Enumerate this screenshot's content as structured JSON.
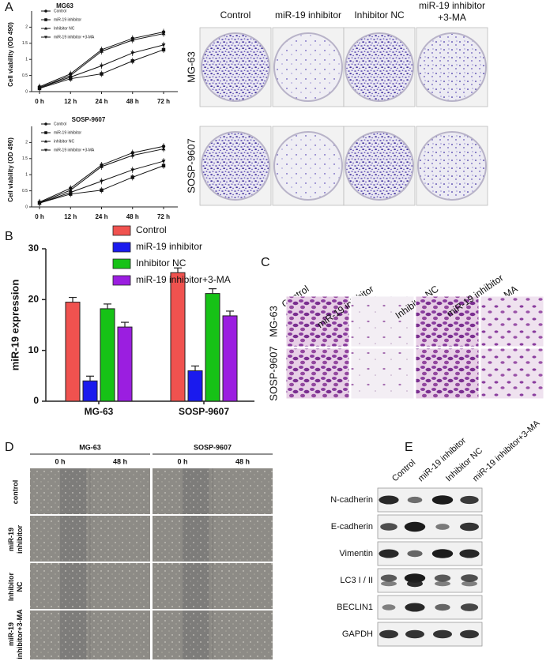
{
  "chart_data": [
    {
      "type": "line",
      "title": "MG63",
      "y_label": "Cell viability (OD 490)",
      "categories": [
        "0 h",
        "12 h",
        "24 h",
        "48 h",
        "72 h"
      ],
      "ylim": [
        0,
        2.5
      ],
      "yticks": [
        0,
        0.5,
        1,
        1.5,
        2
      ],
      "series": [
        {
          "name": "Control",
          "color": "#111111",
          "marker": "circle",
          "values": [
            0.15,
            0.55,
            1.3,
            1.65,
            1.85
          ]
        },
        {
          "name": "miR-19 inhibitor",
          "color": "#111111",
          "marker": "square",
          "values": [
            0.1,
            0.4,
            0.55,
            0.95,
            1.3
          ]
        },
        {
          "name": "Inhibitor NC",
          "color": "#111111",
          "marker": "triangle",
          "values": [
            0.12,
            0.5,
            1.25,
            1.6,
            1.8
          ]
        },
        {
          "name": "miR-19 inhibitor +3-MA",
          "color": "#111111",
          "marker": "triangle-down",
          "values": [
            0.12,
            0.45,
            0.8,
            1.2,
            1.45
          ]
        }
      ]
    },
    {
      "type": "line",
      "title": "SOSP-9607",
      "y_label": "Cell viability (OD 490)",
      "categories": [
        "0 h",
        "12 h",
        "24 h",
        "48 h",
        "72 h"
      ],
      "ylim": [
        0,
        2.5
      ],
      "yticks": [
        0,
        0.5,
        1,
        1.5,
        2
      ],
      "series": [
        {
          "name": "Control",
          "color": "#111111",
          "marker": "circle",
          "values": [
            0.15,
            0.58,
            1.3,
            1.68,
            1.88
          ]
        },
        {
          "name": "miR-19 inhibitor",
          "color": "#111111",
          "marker": "square",
          "values": [
            0.12,
            0.4,
            0.52,
            0.92,
            1.28
          ]
        },
        {
          "name": "inhibitor NC",
          "color": "#111111",
          "marker": "triangle",
          "values": [
            0.13,
            0.52,
            1.25,
            1.6,
            1.8
          ]
        },
        {
          "name": "miR-19 inhibitor +3-MA",
          "color": "#111111",
          "marker": "triangle-down",
          "values": [
            0.12,
            0.45,
            0.8,
            1.15,
            1.42
          ]
        }
      ]
    },
    {
      "type": "bar",
      "y_label": "miR-19 expression",
      "categories": [
        "MG-63",
        "SOSP-9607"
      ],
      "ylim": [
        0,
        30
      ],
      "yticks": [
        0,
        10,
        20,
        30
      ],
      "series": [
        {
          "name": "Control",
          "color": "#f0524f",
          "values": [
            19.5,
            25.3
          ]
        },
        {
          "name": "miR-19 inhibitor",
          "color": "#1a1aee",
          "values": [
            4,
            6
          ]
        },
        {
          "name": "Inhibitor NC",
          "color": "#16c216",
          "values": [
            18.2,
            21.2
          ]
        },
        {
          "name": "miR-19 inhibitor+3-MA",
          "color": "#9b1ee0",
          "values": [
            14.6,
            16.8
          ]
        }
      ]
    }
  ],
  "panel_labels": [
    "A",
    "B",
    "C",
    "D",
    "E"
  ],
  "colony_assay": {
    "columns": [
      [
        "Control"
      ],
      [
        "miR-19 inhibitor"
      ],
      [
        "Inhibitor NC"
      ],
      [
        "miR-19 inhibitor",
        "+3-MA"
      ]
    ],
    "rows": [
      "MG-63",
      "SOSP-9607"
    ]
  },
  "transwell": {
    "columns": [
      [
        "Control"
      ],
      [
        "miR-19 inhibitor"
      ],
      [
        "Inhibitor NC"
      ],
      [
        "miR-19 inhibitor",
        "+3-MA"
      ]
    ],
    "rows": [
      "MG-63",
      "SOSP-9607"
    ]
  },
  "wound_healing": {
    "groups": [
      {
        "name": "MG-63",
        "times": [
          "0 h",
          "48 h"
        ]
      },
      {
        "name": "SOSP-9607",
        "times": [
          "0 h",
          "48 h"
        ]
      }
    ],
    "rows": [
      [
        "control"
      ],
      [
        "miR-19",
        "inhibitor"
      ],
      [
        "Inhibitor",
        "NC"
      ],
      [
        "miR-19",
        "inhibitor+3-MA"
      ]
    ]
  },
  "western_blot": {
    "columns": [
      "Control",
      "miR-19 inhibitor",
      "Inhibitor NC",
      "miR-19 inhibitor+3-MA"
    ],
    "rows": [
      "N-cadherin",
      "E-cadherin",
      "Vimentin",
      "LC3 I / II",
      "BECLIN1",
      "GAPDH"
    ]
  }
}
